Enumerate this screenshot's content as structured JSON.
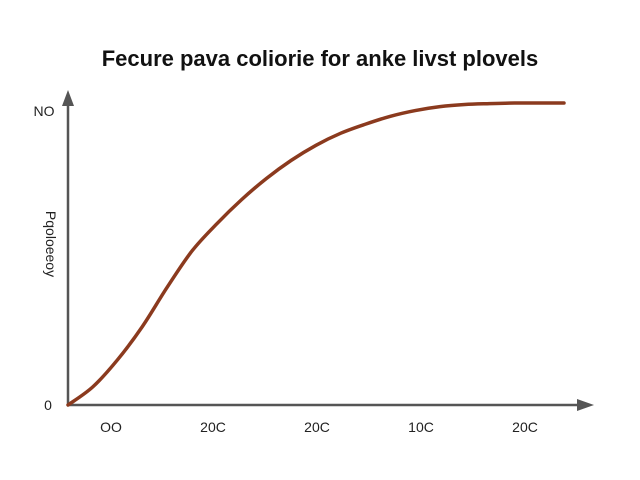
{
  "chart_data": {
    "type": "line",
    "title": "Fecure pava coliorie for anke livst plovels",
    "xlabel": "",
    "ylabel": "Pqoloeeoy",
    "x_tick_labels": [
      "OO",
      "20C",
      "20C",
      "10C",
      "20C"
    ],
    "y_tick_labels": [
      "0",
      "NO"
    ],
    "xlim": [
      0,
      5
    ],
    "ylim": [
      0,
      1
    ],
    "grid": false,
    "legend": "none",
    "series": [
      {
        "x": [
          0,
          0.25,
          0.5,
          0.75,
          1.0,
          1.25,
          1.5,
          1.75,
          2.0,
          2.25,
          2.5,
          2.75,
          3.0,
          3.25,
          3.5,
          3.75,
          4.0,
          4.25,
          4.5,
          4.75,
          5.0
        ],
        "y": [
          0,
          0.06,
          0.15,
          0.26,
          0.39,
          0.51,
          0.6,
          0.68,
          0.75,
          0.81,
          0.86,
          0.9,
          0.93,
          0.956,
          0.975,
          0.988,
          0.995,
          0.998,
          1.0,
          1.0,
          1.0
        ],
        "color": "#8b3a1e"
      }
    ],
    "colors": {
      "axis": "#555555",
      "line": "#8b3a1e",
      "text": "#111111"
    }
  }
}
